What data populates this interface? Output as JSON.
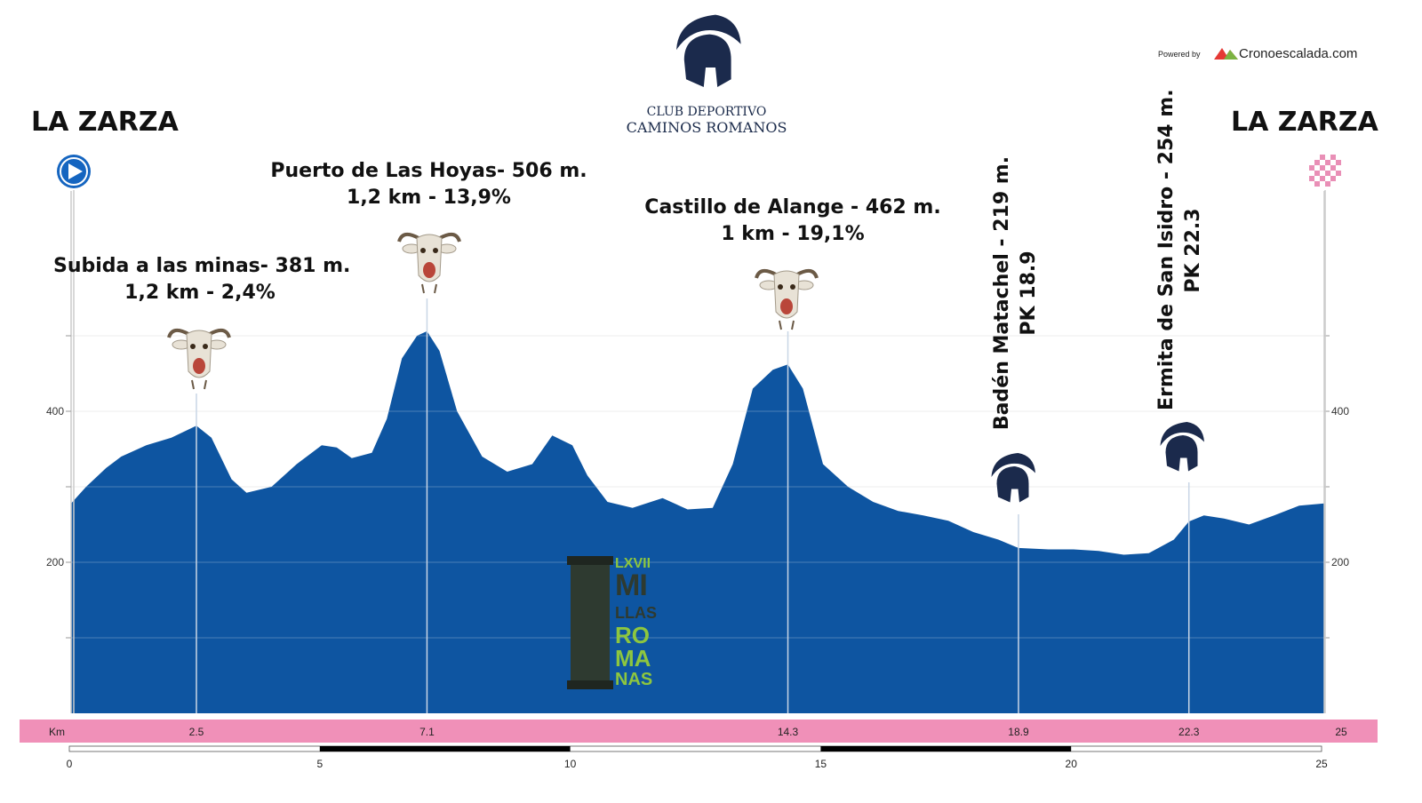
{
  "header": {
    "club_line1": "CLUB DEPORTIVO",
    "club_line2": "CAMINOS ROMANOS",
    "powered_by": "Powered by",
    "powered_site": "Cronoescalada.com",
    "start_name": "LA ZARZA",
    "finish_name": "LA ZARZA"
  },
  "badge": {
    "line1": "LXVII",
    "line2": "MI",
    "line3": "LLAS",
    "line4": "RO",
    "line5": "MA",
    "line6": "NAS"
  },
  "climbs": [
    {
      "title": "Subida a las minas- 381 m.",
      "detail": "1,2 km - 2,4%",
      "km": 2.5,
      "alt": 381
    },
    {
      "title": "Puerto de Las Hoyas- 506 m.",
      "detail": "1,2 km - 13,9%",
      "km": 7.1,
      "alt": 506
    },
    {
      "title": "Castillo de Alange - 462 m.",
      "detail": "1 km - 19,1%",
      "km": 14.3,
      "alt": 462
    }
  ],
  "points": [
    {
      "title": "Badén Matachel - 219 m.",
      "detail": "PK 18.9",
      "km": 18.9,
      "alt": 219
    },
    {
      "title": "Ermita de San Isidro - 254 m.",
      "detail": "PK 22.3",
      "km": 22.3,
      "alt": 254
    }
  ],
  "colors": {
    "profile_fill": "#0e55a1",
    "km_bar": "#f090b8",
    "goat_fur": "#e8e2d6",
    "helmet": "#1b2a4c",
    "start_marker": "#1565c0",
    "finish_marker": "#e98fb6",
    "badge_green": "#8dc63f",
    "badge_dark": "#2e3a30"
  },
  "chart_data": {
    "type": "area",
    "xlabel": "Km",
    "ylabel": "",
    "xlim": [
      0,
      25
    ],
    "ylim": [
      0,
      560
    ],
    "y_ticks": [
      200,
      400
    ],
    "grid": true,
    "x_ticks_bottom": [
      0,
      5,
      10,
      15,
      20,
      25
    ],
    "km_bar_labels": [
      "2.5",
      "7.1",
      "14.3",
      "18.9",
      "22.3",
      "25"
    ],
    "series": [
      {
        "x": [
          0,
          0.3,
          0.7,
          1.0,
          1.5,
          2.0,
          2.5,
          2.8,
          3.2,
          3.5,
          4.0,
          4.5,
          5.0,
          5.3,
          5.6,
          6.0,
          6.3,
          6.6,
          6.9,
          7.1,
          7.35,
          7.7,
          8.2,
          8.7,
          9.2,
          9.6,
          10.0,
          10.3,
          10.7,
          11.2,
          11.8,
          12.3,
          12.8,
          13.2,
          13.6,
          14.0,
          14.3,
          14.6,
          15.0,
          15.5,
          16.0,
          16.5,
          17.0,
          17.5,
          18.0,
          18.5,
          18.9,
          19.5,
          20.0,
          20.5,
          21.0,
          21.5,
          22.0,
          22.3,
          22.6,
          23.0,
          23.5,
          24.0,
          24.5,
          25.0
        ],
        "y": [
          278,
          300,
          325,
          340,
          355,
          365,
          381,
          365,
          310,
          292,
          300,
          330,
          355,
          352,
          338,
          345,
          390,
          470,
          500,
          506,
          480,
          400,
          340,
          320,
          330,
          368,
          355,
          315,
          280,
          272,
          285,
          270,
          272,
          330,
          430,
          455,
          462,
          430,
          330,
          300,
          280,
          268,
          262,
          255,
          240,
          230,
          219,
          217,
          217,
          215,
          210,
          212,
          230,
          254,
          262,
          258,
          250,
          262,
          275,
          278
        ]
      }
    ]
  }
}
